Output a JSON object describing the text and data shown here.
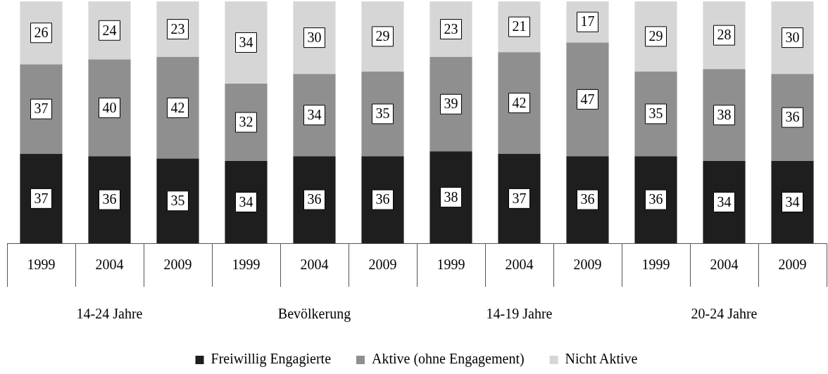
{
  "chart_data": {
    "type": "bar",
    "stacked": true,
    "categories": [
      "1999",
      "2004",
      "2009",
      "1999",
      "2004",
      "2009",
      "1999",
      "2004",
      "2009",
      "1999",
      "2004",
      "2009"
    ],
    "series": [
      {
        "name": "Freiwillig Engagierte",
        "color": "#1e1e1e",
        "values": [
          37,
          36,
          35,
          34,
          36,
          36,
          38,
          37,
          36,
          36,
          34,
          34
        ]
      },
      {
        "name": "Aktive (ohne Engagement)",
        "color": "#8f8f8f",
        "values": [
          37,
          40,
          42,
          32,
          34,
          35,
          39,
          42,
          47,
          35,
          38,
          36
        ]
      },
      {
        "name": "Nicht Aktive",
        "color": "#d6d6d6",
        "values": [
          26,
          24,
          23,
          34,
          30,
          29,
          23,
          21,
          17,
          29,
          28,
          30
        ]
      }
    ],
    "ylim": [
      0,
      100
    ],
    "tick_labels": "x",
    "data_labels": true,
    "legend": "bottom",
    "grid": false,
    "annotations": [
      "14-24 Jahre",
      "Bevölkerung",
      "14-19 Jahre",
      "20-24 Jahre"
    ]
  }
}
